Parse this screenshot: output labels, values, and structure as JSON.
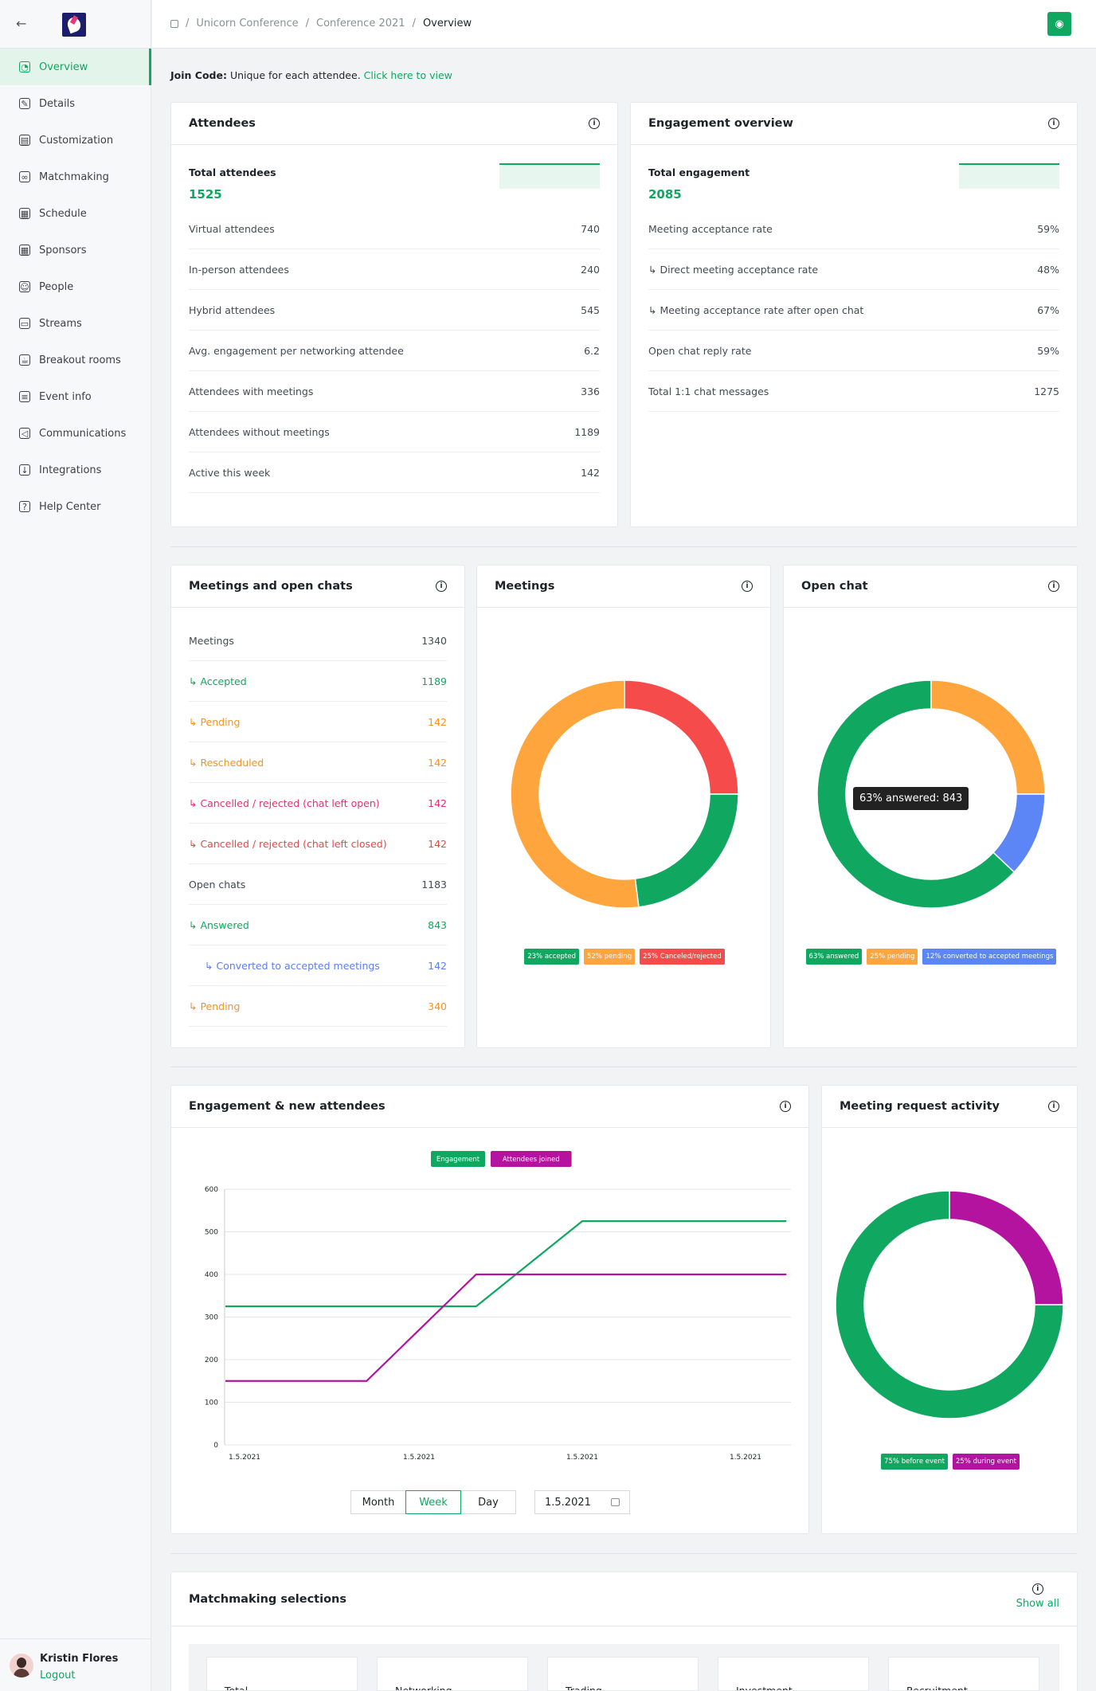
{
  "breadcrumb": [
    "Unicorn Conference",
    "Conference 2021",
    "Overview"
  ],
  "sidebar": {
    "items": [
      {
        "label": "Overview",
        "icon": "overview-icon",
        "glyph": "◔"
      },
      {
        "label": "Details",
        "icon": "edit-icon",
        "glyph": "✎"
      },
      {
        "label": "Customization",
        "icon": "brush-icon",
        "glyph": "▤"
      },
      {
        "label": "Matchmaking",
        "icon": "link-icon",
        "glyph": "∞"
      },
      {
        "label": "Schedule",
        "icon": "calendar-icon",
        "glyph": "▦"
      },
      {
        "label": "Sponsors",
        "icon": "grid-icon",
        "glyph": "▦"
      },
      {
        "label": "People",
        "icon": "people-icon",
        "glyph": "☺"
      },
      {
        "label": "Streams",
        "icon": "monitor-icon",
        "glyph": "▭"
      },
      {
        "label": "Breakout rooms",
        "icon": "coffee-icon",
        "glyph": "☕"
      },
      {
        "label": "Event info",
        "icon": "document-icon",
        "glyph": "≡"
      },
      {
        "label": "Communications",
        "icon": "megaphone-icon",
        "glyph": "◁"
      },
      {
        "label": "Integrations",
        "icon": "download-icon",
        "glyph": "↓"
      },
      {
        "label": "Help Center",
        "icon": "help-icon",
        "glyph": "?"
      }
    ],
    "user": {
      "name": "Kristin Flores",
      "logout": "Logout"
    }
  },
  "join_code": {
    "label": "Join Code:",
    "text": "Unique for each attendee.",
    "link": "Click here to view"
  },
  "attendees": {
    "title": "Attendees",
    "total_label": "Total attendees",
    "total_value": "1525",
    "rows": [
      {
        "label": "Virtual attendees",
        "value": "740"
      },
      {
        "label": "In-person attendees",
        "value": "240"
      },
      {
        "label": "Hybrid attendees",
        "value": "545"
      },
      {
        "label": "Avg. engagement per networking attendee",
        "value": "6.2"
      },
      {
        "label": "Attendees with meetings",
        "value": "336"
      },
      {
        "label": "Attendees without meetings",
        "value": "1189"
      },
      {
        "label": "Active this week",
        "value": "142"
      }
    ]
  },
  "engagement": {
    "title": "Engagement overview",
    "total_label": "Total engagement",
    "total_value": "2085",
    "rows": [
      {
        "label": "Meeting acceptance rate",
        "value": "59%"
      },
      {
        "label": "↳ Direct meeting acceptance rate",
        "value": "48%"
      },
      {
        "label": "↳ Meeting acceptance rate after open chat",
        "value": "67%"
      },
      {
        "label": "Open chat reply rate",
        "value": "59%"
      },
      {
        "label": "Total 1:1 chat messages",
        "value": "1275"
      }
    ]
  },
  "meetings_chats": {
    "title": "Meetings and open chats",
    "rows": [
      {
        "label": "Meetings",
        "value": "1340",
        "tone": ""
      },
      {
        "label": "↳ Accepted",
        "value": "1189",
        "tone": "c-green"
      },
      {
        "label": "↳ Pending",
        "value": "142",
        "tone": "c-orange"
      },
      {
        "label": "↳ Rescheduled",
        "value": "142",
        "tone": "c-orange"
      },
      {
        "label": "↳ Cancelled / rejected (chat left open)",
        "value": "142",
        "tone": "c-pink"
      },
      {
        "label": "↳ Cancelled / rejected (chat left closed)",
        "value": "142",
        "tone": "c-red"
      },
      {
        "label": "Open chats",
        "value": "1183",
        "tone": ""
      },
      {
        "label": "↳ Answered",
        "value": "843",
        "tone": "c-green"
      },
      {
        "label": "↳ Converted to accepted meetings",
        "value": "142",
        "tone": "c-blue indent2"
      },
      {
        "label": "↳ Pending",
        "value": "340",
        "tone": "c-orange"
      }
    ]
  },
  "colors": {
    "green": "#10a861",
    "orange": "#ffa53d",
    "red": "#f54b4b",
    "blue": "#5c85f5",
    "magenta": "#b3139f"
  },
  "meetings_chart": {
    "title": "Meetings",
    "legend": [
      "23% accepted",
      "52% pending",
      "25% Canceled/rejected"
    ]
  },
  "openchat_chart": {
    "title": "Open chat",
    "legend": [
      "63% answered",
      "25% pending",
      "12% converted to accepted meetings"
    ],
    "tooltip": "63% answered: 843"
  },
  "line_chart_card": {
    "title": "Engagement & new attendees",
    "tabs": [
      "Month",
      "Week",
      "Day"
    ],
    "active_tab": "Week",
    "date": "1.5.2021"
  },
  "activity_chart": {
    "title": "Meeting request activity",
    "legend": [
      "75% before event",
      "25% during event"
    ]
  },
  "matchmaking": {
    "title": "Matchmaking selections",
    "show_all": "Show all",
    "boxes": [
      "Total",
      "Networking",
      "Trading",
      "Investment",
      "Recruitment"
    ]
  },
  "chart_data": [
    {
      "type": "pie",
      "title": "Meetings",
      "labels": [
        "accepted",
        "pending",
        "Canceled/rejected"
      ],
      "values": [
        23,
        52,
        25
      ],
      "colors": [
        "#10a861",
        "#ffa53d",
        "#f54b4b"
      ],
      "donut": true
    },
    {
      "type": "pie",
      "title": "Open chat",
      "labels": [
        "answered",
        "pending",
        "converted to accepted meetings"
      ],
      "values": [
        63,
        25,
        12
      ],
      "colors": [
        "#10a861",
        "#ffa53d",
        "#5c85f5"
      ],
      "donut": true
    },
    {
      "type": "line",
      "title": "Engagement & new attendees",
      "x": [
        "1.5.2021",
        "1.5.2021",
        "1.5.2021",
        "1.5.2021"
      ],
      "ylim": [
        0,
        600
      ],
      "yticks": [
        0,
        100,
        200,
        300,
        400,
        500,
        600
      ],
      "grid": true,
      "legend_position": "top",
      "series": [
        {
          "name": "Engagement",
          "color": "#10a861",
          "points": [
            [
              0,
              325
            ],
            [
              1.35,
              325
            ],
            [
              2,
              525
            ],
            [
              3.25,
              525
            ]
          ]
        },
        {
          "name": "Attendees joined",
          "color": "#b3139f",
          "points": [
            [
              0,
              150
            ],
            [
              0.7,
              150
            ],
            [
              1.35,
              400
            ],
            [
              3.25,
              400
            ]
          ]
        }
      ]
    },
    {
      "type": "pie",
      "title": "Meeting request activity",
      "labels": [
        "before event",
        "during event"
      ],
      "values": [
        75,
        25
      ],
      "colors": [
        "#10a861",
        "#b3139f"
      ],
      "donut": true
    }
  ]
}
